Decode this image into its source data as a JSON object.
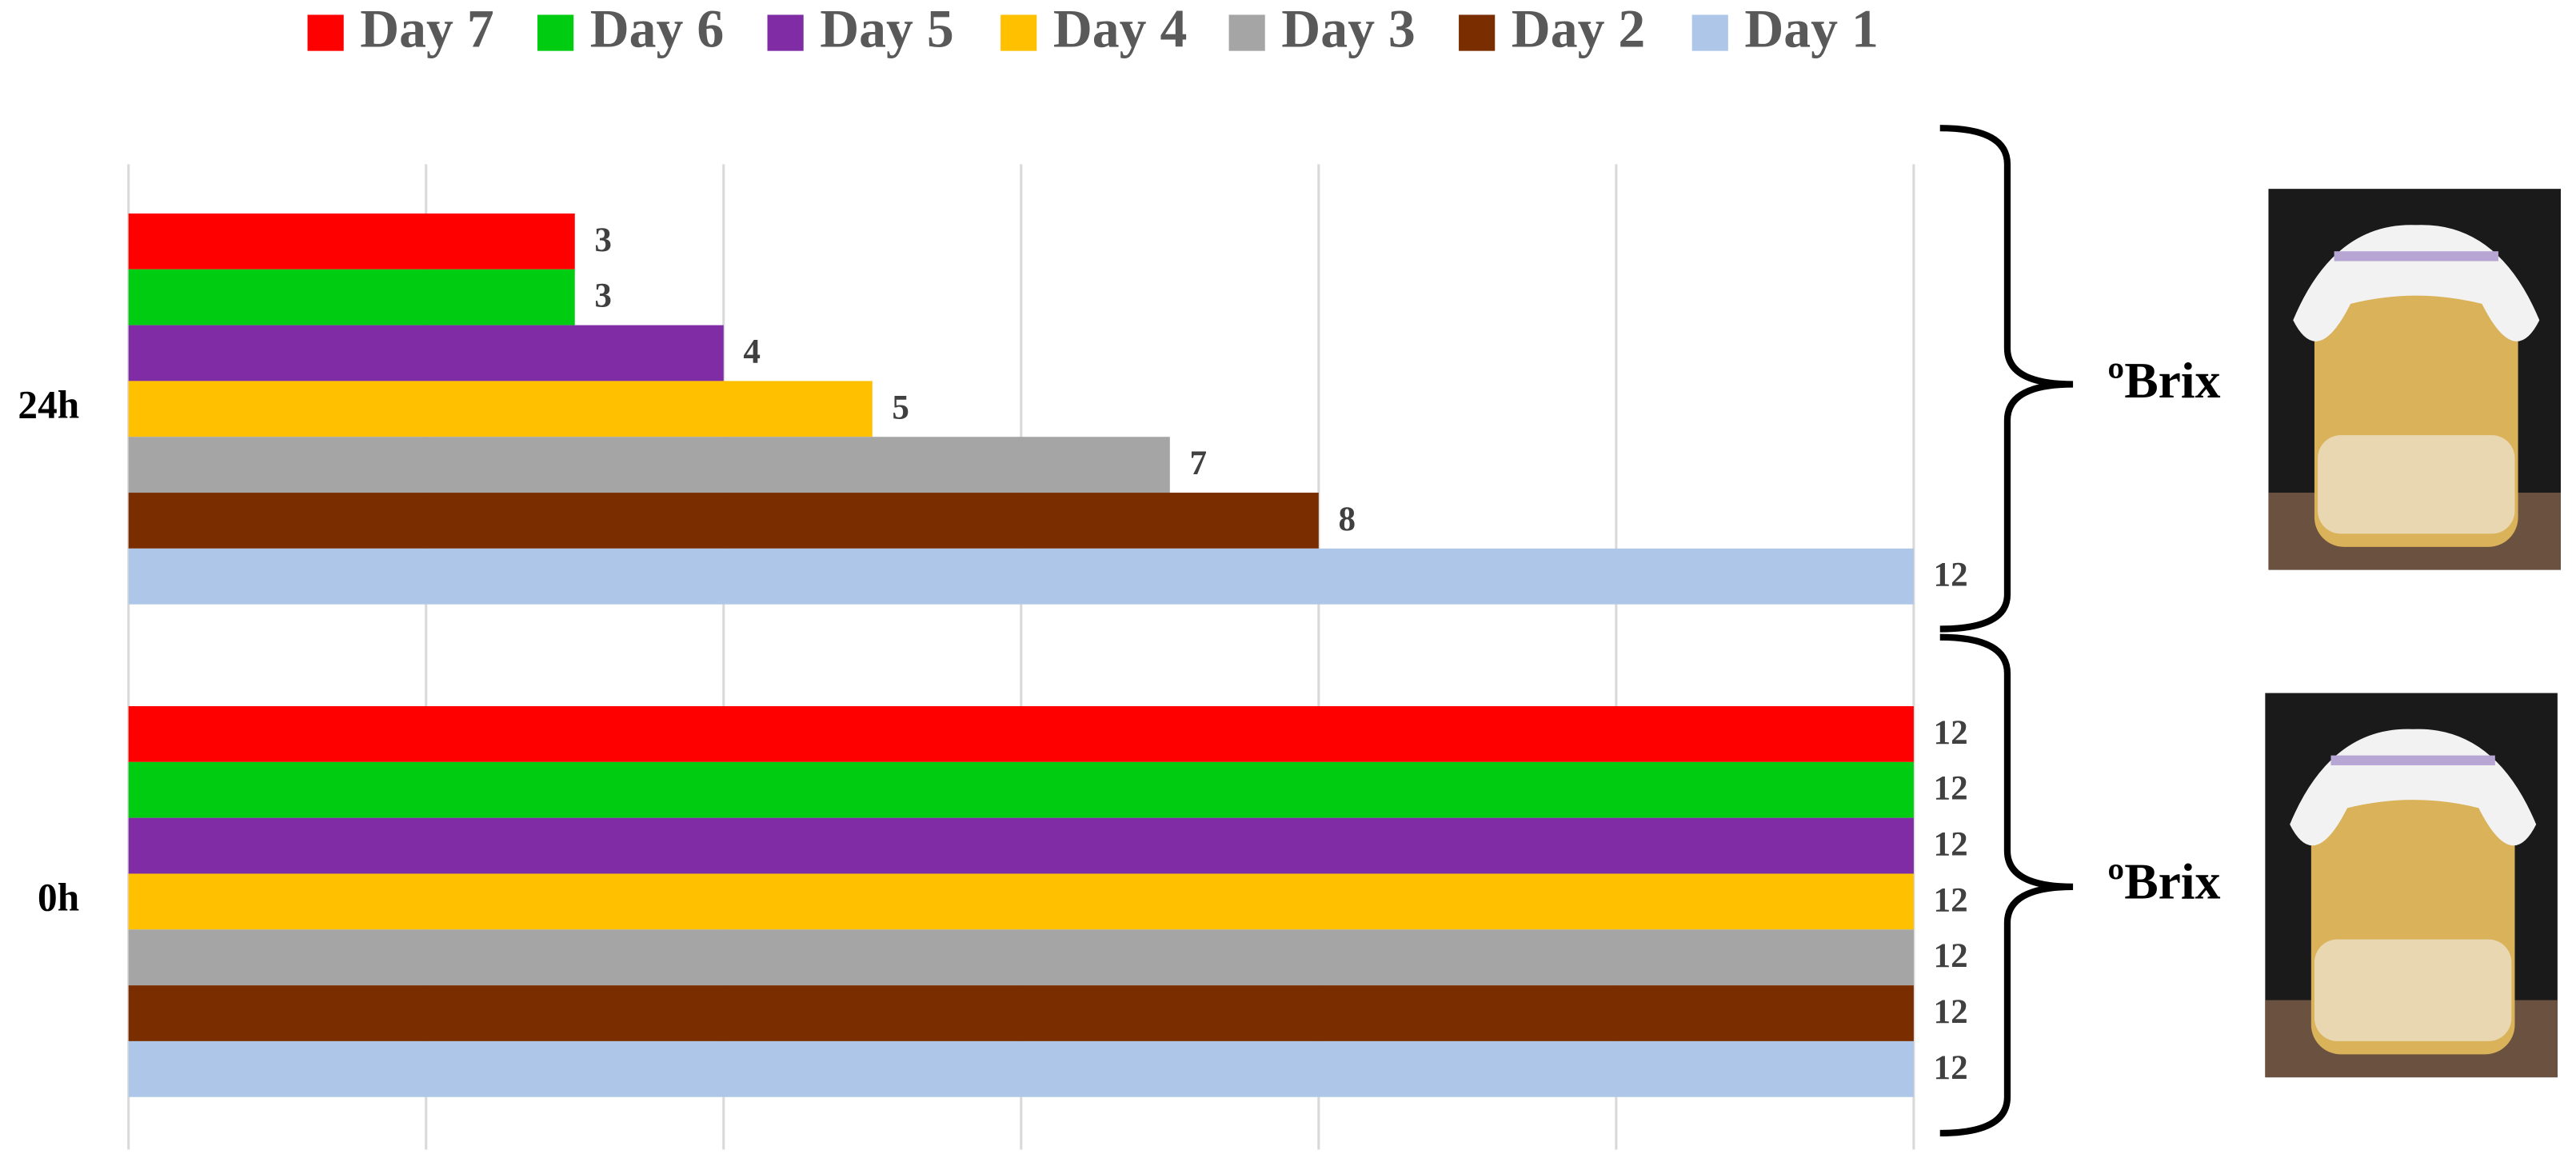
{
  "chart_data": {
    "type": "hbar",
    "categories": [
      "24h",
      "0h"
    ],
    "series": [
      {
        "name": "Day 7",
        "color": "#ff0000",
        "values": [
          3,
          12
        ]
      },
      {
        "name": "Day 6",
        "color": "#00cc11",
        "values": [
          3,
          12
        ]
      },
      {
        "name": "Day 5",
        "color": "#7f2ca5",
        "values": [
          4,
          12
        ]
      },
      {
        "name": "Day 4",
        "color": "#ffc000",
        "values": [
          5,
          12
        ]
      },
      {
        "name": "Day 3",
        "color": "#a5a5a5",
        "values": [
          7,
          12
        ]
      },
      {
        "name": "Day 2",
        "color": "#7a2e00",
        "values": [
          8,
          12
        ]
      },
      {
        "name": "Day 1",
        "color": "#aec7e8",
        "values": [
          12,
          12
        ]
      }
    ],
    "xlim": [
      0,
      12
    ],
    "xticks": [
      0,
      2,
      4,
      6,
      8,
      10,
      12
    ],
    "show_tick_labels": false,
    "grid": true,
    "legend": "top",
    "annotations": [
      "ºBrix",
      "ºBrix"
    ]
  }
}
